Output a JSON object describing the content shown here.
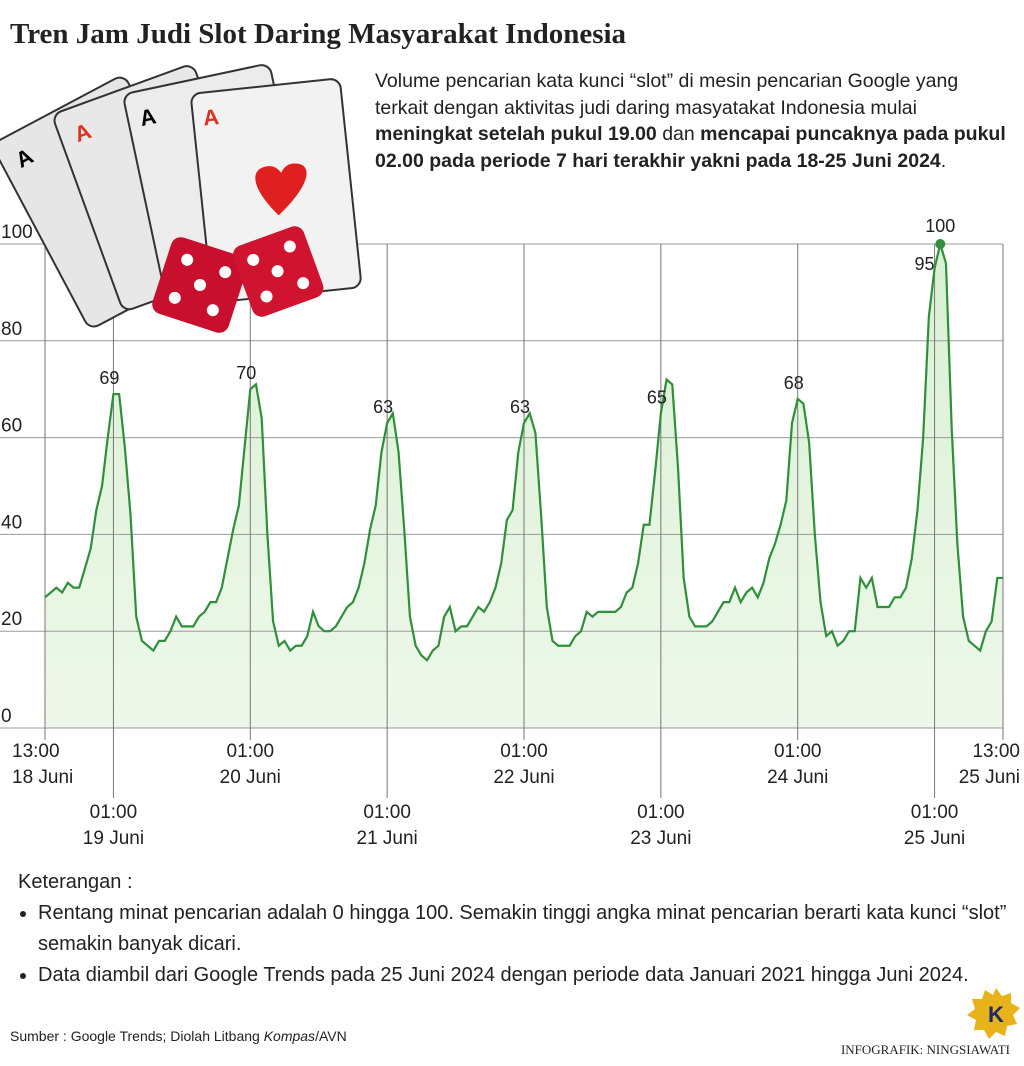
{
  "chart_data": {
    "type": "line",
    "title": "Tren Jam Judi Slot Daring Masyarakat Indonesia",
    "description": [
      {
        "text": "Volume pencarian kata kunci “slot” di mesin pencarian Google yang terkait dengan aktivitas judi daring masyatakat Indonesia mulai ",
        "bold": false
      },
      {
        "text": "meningkat setelah pukul 19.00",
        "bold": true
      },
      {
        "text": " dan ",
        "bold": false
      },
      {
        "text": "mencapai puncaknya pada pukul 02.00 pada periode 7 hari terakhir yakni pada 18-25 Juni 2024",
        "bold": true
      },
      {
        "text": ".",
        "bold": false
      }
    ],
    "categories": [
      [
        "13:00",
        "18 Juni"
      ],
      null,
      null,
      null,
      null,
      null,
      null,
      null,
      null,
      null,
      null,
      null,
      [
        "01:00",
        "19 Juni"
      ],
      null,
      null,
      null,
      null,
      null,
      null,
      null,
      null,
      null,
      null,
      null,
      null,
      null,
      null,
      null,
      null,
      null,
      null,
      null,
      null,
      null,
      null,
      null,
      [
        "01:00",
        "20 Juni"
      ],
      null,
      null,
      null,
      null,
      null,
      null,
      null,
      null,
      null,
      null,
      null,
      null,
      null,
      null,
      null,
      null,
      null,
      null,
      null,
      null,
      null,
      null,
      null,
      [
        "01:00",
        "21 Juni"
      ],
      null,
      null,
      null,
      null,
      null,
      null,
      null,
      null,
      null,
      null,
      null,
      null,
      null,
      null,
      null,
      null,
      null,
      null,
      null,
      null,
      null,
      null,
      null,
      [
        "01:00",
        "22 Juni"
      ],
      null,
      null,
      null,
      null,
      null,
      null,
      null,
      null,
      null,
      null,
      null,
      null,
      null,
      null,
      null,
      null,
      null,
      null,
      null,
      null,
      null,
      null,
      null,
      [
        "01:00",
        "23 Juni"
      ],
      null,
      null,
      null,
      null,
      null,
      null,
      null,
      null,
      null,
      null,
      null,
      null,
      null,
      null,
      null,
      null,
      null,
      null,
      null,
      null,
      null,
      null,
      null,
      [
        "01:00",
        "24 Juni"
      ],
      null,
      null,
      null,
      null,
      null,
      null,
      null,
      null,
      null,
      null,
      null,
      null,
      null,
      null,
      null,
      null,
      null,
      null,
      null,
      null,
      null,
      null,
      null,
      [
        "01:00",
        "25 Juni"
      ],
      null,
      null,
      null,
      null,
      null,
      null,
      null,
      null,
      null,
      null,
      null,
      [
        "13:00",
        "25 Juni"
      ]
    ],
    "series": [
      {
        "color": "#2f8f3a",
        "values": [
          27,
          28,
          29,
          28,
          30,
          29,
          29,
          33,
          37,
          45,
          50,
          60,
          69,
          69,
          58,
          44,
          23,
          18,
          17,
          16,
          18,
          18,
          20,
          23,
          21,
          21,
          21,
          23,
          24,
          26,
          26,
          29,
          35,
          41,
          46,
          58,
          70,
          71,
          64,
          40,
          22,
          17,
          18,
          16,
          17,
          17,
          19,
          24,
          21,
          20,
          20,
          21,
          23,
          25,
          26,
          29,
          34,
          41,
          46,
          57,
          63,
          65,
          57,
          41,
          23,
          17,
          15,
          14,
          16,
          17,
          23,
          25,
          20,
          21,
          21,
          23,
          25,
          24,
          26,
          29,
          34,
          43,
          45,
          57,
          63,
          65,
          61,
          44,
          25,
          18,
          17,
          17,
          17,
          19,
          20,
          24,
          23,
          24,
          24,
          24,
          24,
          25,
          28,
          29,
          34,
          42,
          42,
          53,
          65,
          72,
          71,
          54,
          31,
          23,
          21,
          21,
          21,
          22,
          24,
          26,
          26,
          29,
          26,
          28,
          29,
          27,
          30,
          35,
          38,
          42,
          47,
          63,
          68,
          67,
          59,
          40,
          26,
          19,
          20,
          17,
          18,
          20,
          20,
          31,
          29,
          31,
          25,
          25,
          25,
          27,
          27,
          29,
          35,
          45,
          60,
          85,
          95,
          100,
          96,
          62,
          38,
          23,
          18,
          17,
          16,
          20,
          22,
          31,
          31
        ],
        "value_labels": [
          null,
          null,
          null,
          null,
          null,
          null,
          null,
          null,
          null,
          null,
          null,
          null,
          "69",
          null,
          null,
          null,
          null,
          null,
          null,
          null,
          null,
          null,
          null,
          null,
          null,
          null,
          null,
          null,
          null,
          null,
          null,
          null,
          null,
          null,
          null,
          null,
          "70",
          null,
          null,
          null,
          null,
          null,
          null,
          null,
          null,
          null,
          null,
          null,
          null,
          null,
          null,
          null,
          null,
          null,
          null,
          null,
          null,
          null,
          null,
          null,
          "63",
          null,
          null,
          null,
          null,
          null,
          null,
          null,
          null,
          null,
          null,
          null,
          null,
          null,
          null,
          null,
          null,
          null,
          null,
          null,
          null,
          null,
          null,
          null,
          "63",
          null,
          null,
          null,
          null,
          null,
          null,
          null,
          null,
          null,
          null,
          null,
          null,
          null,
          null,
          null,
          null,
          null,
          null,
          null,
          null,
          null,
          null,
          null,
          "65",
          null,
          null,
          null,
          null,
          null,
          null,
          null,
          null,
          null,
          null,
          null,
          null,
          null,
          null,
          null,
          null,
          null,
          null,
          null,
          null,
          null,
          null,
          null,
          "68",
          null,
          null,
          null,
          null,
          null,
          null,
          null,
          null,
          null,
          null,
          null,
          null,
          null,
          null,
          null,
          null,
          null,
          null,
          null,
          null,
          null,
          null,
          null,
          "95",
          "100",
          null,
          null,
          null,
          null,
          null,
          null,
          null,
          null,
          null,
          null,
          null
        ]
      }
    ],
    "ylim": [
      0,
      100
    ],
    "yticks": [
      0,
      20,
      40,
      60,
      80,
      100
    ],
    "grid": true,
    "notes_title": "Keterangan :",
    "notes": [
      "Rentang minat pencarian adalah 0 hingga 100. Semakin tinggi angka minat pencarian berarti kata kunci “slot” semakin banyak dicari.",
      "Data diambil dari Google Trends pada 25 Juni 2024 dengan periode data Januari 2021 hingga Juni 2024."
    ],
    "source": [
      {
        "text": "Sumber : Google Trends; Diolah Litbang ",
        "italic": false
      },
      {
        "text": "Kompas",
        "italic": true
      },
      {
        "text": "/AVN",
        "italic": false
      }
    ],
    "credit": "INFOGRAFIK: NINGSIAWATI",
    "logo": "K"
  }
}
